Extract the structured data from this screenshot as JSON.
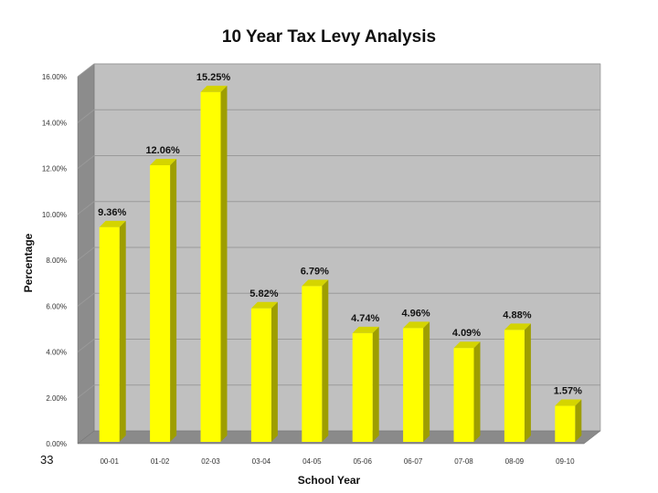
{
  "page": {
    "slide_number": "33"
  },
  "colors": {
    "bar_front": "#ffff00",
    "bar_side": "#9e9e00",
    "bar_top": "#d4d400",
    "wall": "#c0c0c0",
    "side_wall": "#8c8c8c",
    "floor": "#8a8a8a",
    "gridline": "#9a9a9a"
  },
  "chart_data": {
    "type": "bar",
    "title": "10 Year Tax Levy Analysis",
    "xlabel": "School Year",
    "ylabel": "Percentage",
    "ylim": [
      0,
      16
    ],
    "grid": true,
    "legend": "none",
    "three_d": true,
    "categories": [
      "00-01",
      "01-02",
      "02-03",
      "03-04",
      "04-05",
      "05-06",
      "06-07",
      "07-08",
      "08-09",
      "09-10"
    ],
    "values": [
      9.36,
      12.06,
      15.25,
      5.82,
      6.79,
      4.74,
      4.96,
      4.09,
      4.88,
      1.57
    ],
    "data_labels": [
      "9.36%",
      "12.06%",
      "15.25%",
      "5.82%",
      "6.79%",
      "4.74%",
      "4.96%",
      "4.09%",
      "4.88%",
      "1.57%"
    ],
    "yticks": [
      0,
      2,
      4,
      6,
      8,
      10,
      12,
      14,
      16
    ],
    "ytick_labels": [
      "0.00%",
      "2.00%",
      "4.00%",
      "6.00%",
      "8.00%",
      "10.00%",
      "12.00%",
      "14.00%",
      "16.00%"
    ]
  }
}
